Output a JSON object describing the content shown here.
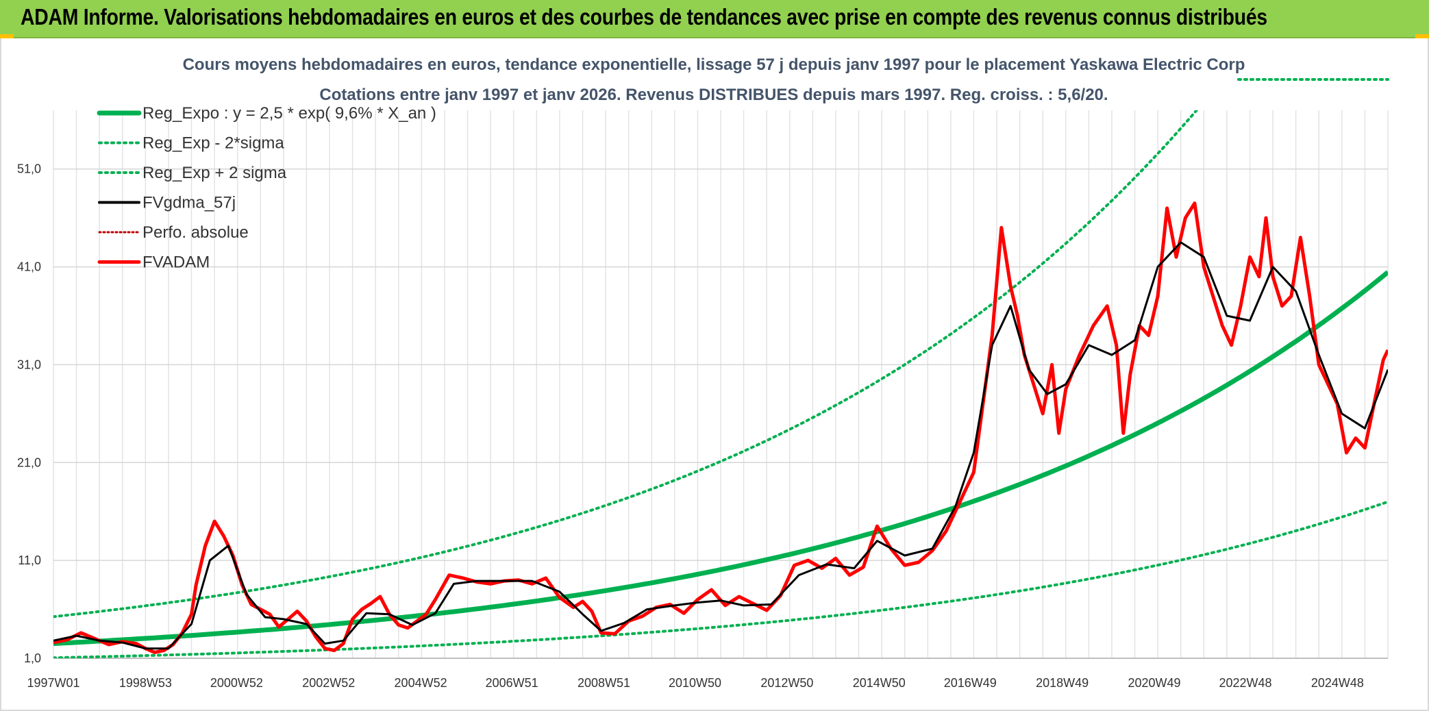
{
  "header": {
    "title": "ADAM Informe. Valorisations hebdomadaires en euros et des courbes de tendances avec prise en compte des revenus connus distribués"
  },
  "colors": {
    "banner": "#92d050",
    "corner": "#ffc000",
    "trend": "#00b050",
    "smooth": "#000000",
    "price": "#ff0000",
    "perf": "#c00000",
    "title_text": "#44546a"
  },
  "chart_data": {
    "type": "line",
    "title": "Cours moyens hebdomadaires en euros, tendance exponentielle, lissage 57 j depuis janv 1997 pour le placement Yaskawa Electric Corp",
    "subtitle": "Cotations entre janv 1997 et janv 2026. Revenus DISTRIBUES depuis mars 1997. Reg. croiss. : 5,6/20.",
    "x_ticks": [
      "1997W01",
      "1998W53",
      "2000W52",
      "2002W52",
      "2004W52",
      "2006W51",
      "2008W51",
      "2010W50",
      "2012W50",
      "2014W50",
      "2016W49",
      "2018W49",
      "2020W49",
      "2022W48",
      "2024W48"
    ],
    "y_ticks": [
      "1,0",
      "11,0",
      "21,0",
      "31,0",
      "41,0",
      "51,0"
    ],
    "ylim": [
      1,
      57
    ],
    "xlim": [
      1997.0,
      2026.0
    ],
    "grid": true,
    "legend_position": "top-left",
    "legend": [
      {
        "label": "Reg_Expo : y = 2,5 * exp( 9,6% *  X_an )",
        "style": "trend"
      },
      {
        "label": "Reg_Exp - 2*sigma",
        "style": "band"
      },
      {
        "label": "Reg_Exp + 2 sigma",
        "style": "band"
      },
      {
        "label": "FVgdma_57j",
        "style": "smooth"
      },
      {
        "label": "Perfo. absolue",
        "style": "perf"
      },
      {
        "label": "FVADAM",
        "style": "price"
      }
    ],
    "trend": {
      "a": 2.5,
      "rate": 0.096,
      "lower_factor": 0.42,
      "upper_factor": 2.1
    },
    "series": [
      {
        "name": "FVADAM",
        "x": [
          1997.0,
          1997.3,
          1997.6,
          1997.9,
          1998.2,
          1998.5,
          1998.8,
          1999.0,
          1999.2,
          1999.4,
          1999.6,
          1999.8,
          2000.0,
          2000.1,
          2000.3,
          2000.5,
          2000.7,
          2000.9,
          2001.1,
          2001.3,
          2001.5,
          2001.7,
          2001.9,
          2002.1,
          2002.3,
          2002.5,
          2002.7,
          2002.9,
          2003.1,
          2003.3,
          2003.5,
          2003.7,
          2003.9,
          2004.1,
          2004.3,
          2004.5,
          2004.7,
          2004.9,
          2005.1,
          2005.3,
          2005.6,
          2005.9,
          2006.2,
          2006.5,
          2006.8,
          2007.1,
          2007.4,
          2007.7,
          2008.0,
          2008.3,
          2008.5,
          2008.7,
          2008.9,
          2009.2,
          2009.5,
          2009.8,
          2010.1,
          2010.4,
          2010.7,
          2011.0,
          2011.3,
          2011.6,
          2011.9,
          2012.2,
          2012.5,
          2012.8,
          2013.1,
          2013.4,
          2013.7,
          2014.0,
          2014.3,
          2014.6,
          2014.9,
          2015.2,
          2015.5,
          2015.8,
          2016.1,
          2016.4,
          2016.7,
          2017.0,
          2017.2,
          2017.4,
          2017.6,
          2017.8,
          2017.95,
          2018.1,
          2018.3,
          2018.5,
          2018.7,
          2018.85,
          2019.0,
          2019.3,
          2019.6,
          2019.9,
          2020.1,
          2020.25,
          2020.4,
          2020.6,
          2020.8,
          2021.0,
          2021.2,
          2021.4,
          2021.6,
          2021.8,
          2022.0,
          2022.2,
          2022.4,
          2022.6,
          2022.8,
          2023.0,
          2023.2,
          2023.35,
          2023.5,
          2023.7,
          2023.9,
          2024.1,
          2024.3,
          2024.5,
          2024.7,
          2024.9,
          2025.1,
          2025.3,
          2025.5,
          2025.7,
          2025.9,
          2026.0
        ],
        "y": [
          2.6,
          2.9,
          3.6,
          3.0,
          2.4,
          2.7,
          2.5,
          2.0,
          1.6,
          1.8,
          2.4,
          3.6,
          5.5,
          8.5,
          12.5,
          15.0,
          13.5,
          11.5,
          8.5,
          6.5,
          6.0,
          5.5,
          4.2,
          5.0,
          5.8,
          4.8,
          3.2,
          2.0,
          1.8,
          2.5,
          5.0,
          6.0,
          6.6,
          7.3,
          5.5,
          4.4,
          4.1,
          4.8,
          5.5,
          7.0,
          9.5,
          9.2,
          8.8,
          8.6,
          8.9,
          9.0,
          8.6,
          9.2,
          7.2,
          6.2,
          6.8,
          5.8,
          3.6,
          3.5,
          4.8,
          5.3,
          6.2,
          6.5,
          5.6,
          7.0,
          8.0,
          6.4,
          7.3,
          6.6,
          5.9,
          7.4,
          10.5,
          11.0,
          10.2,
          11.2,
          9.5,
          10.3,
          14.5,
          12.2,
          10.5,
          10.8,
          12.0,
          14.0,
          17.0,
          20.0,
          27.0,
          34.0,
          45.0,
          39.0,
          36.0,
          32.0,
          29.0,
          26.0,
          31.0,
          24.0,
          28.5,
          32.0,
          35.0,
          37.0,
          33.0,
          24.0,
          30.0,
          35.0,
          34.0,
          38.0,
          47.0,
          42.0,
          46.0,
          47.5,
          41.0,
          38.0,
          35.0,
          33.0,
          37.0,
          42.0,
          40.0,
          46.0,
          40.0,
          37.0,
          38.0,
          44.0,
          38.0,
          31.0,
          29.0,
          27.0,
          22.0,
          23.5,
          22.5,
          27.0,
          31.5,
          32.5
        ]
      },
      {
        "name": "FVgdma_57j",
        "x": [
          1997.0,
          1997.5,
          1998.0,
          1998.5,
          1999.0,
          1999.5,
          2000.0,
          2000.4,
          2000.8,
          2001.2,
          2001.6,
          2002.0,
          2002.5,
          2002.9,
          2003.3,
          2003.8,
          2004.3,
          2004.8,
          2005.3,
          2005.7,
          2006.2,
          2006.8,
          2007.4,
          2008.0,
          2008.5,
          2008.9,
          2009.4,
          2009.9,
          2010.5,
          2011.0,
          2011.5,
          2012.0,
          2012.6,
          2013.2,
          2013.8,
          2014.4,
          2014.9,
          2015.5,
          2016.1,
          2016.6,
          2017.0,
          2017.4,
          2017.8,
          2018.2,
          2018.6,
          2019.0,
          2019.5,
          2020.0,
          2020.5,
          2021.0,
          2021.5,
          2022.0,
          2022.5,
          2023.0,
          2023.5,
          2024.0,
          2024.5,
          2025.0,
          2025.5,
          2026.0
        ],
        "y": [
          2.8,
          3.3,
          2.8,
          2.6,
          2.0,
          2.0,
          4.5,
          11.0,
          12.5,
          7.5,
          5.2,
          5.0,
          4.5,
          2.5,
          2.8,
          5.6,
          5.5,
          4.4,
          5.6,
          8.6,
          8.9,
          8.9,
          8.9,
          7.8,
          5.5,
          3.8,
          4.6,
          6.0,
          6.4,
          6.7,
          6.9,
          6.4,
          6.5,
          9.5,
          10.6,
          10.2,
          13.0,
          11.5,
          12.2,
          16.5,
          22.0,
          33.0,
          37.0,
          30.5,
          28.0,
          29.0,
          33.0,
          32.0,
          33.5,
          41.0,
          43.5,
          42.0,
          36.0,
          35.5,
          41.0,
          38.5,
          32.0,
          26.0,
          24.5,
          30.5
        ]
      }
    ]
  }
}
